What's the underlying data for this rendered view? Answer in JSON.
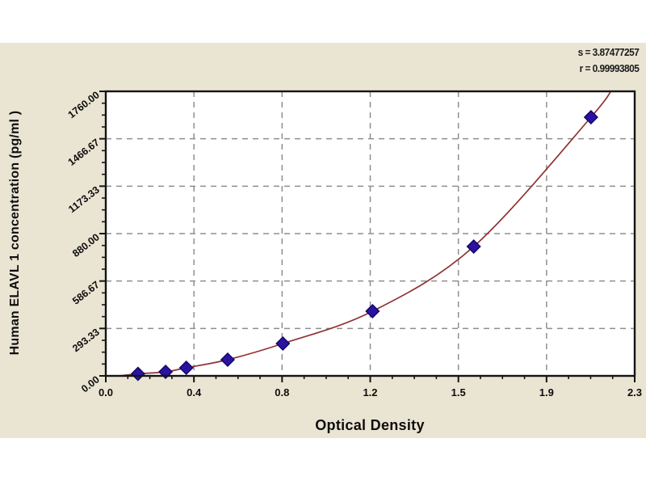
{
  "figure": {
    "stats": {
      "s_label": "s = 3.87477257",
      "r_label": "r = 0.99993805"
    }
  },
  "chart_data": {
    "type": "scatter",
    "title": "",
    "xlabel": "Optical Density",
    "ylabel": "Human ELAVL 1 concentration (pg/ml )",
    "xlim": [
      0,
      2.3
    ],
    "ylim": [
      0,
      1760
    ],
    "x_tick_labels": [
      "0.0",
      "0.4",
      "0.8",
      "1.2",
      "1.5",
      "1.9",
      "2.3"
    ],
    "y_tick_labels": [
      "0.00",
      "293.33",
      "586.67",
      "880.00",
      "1173.33",
      "1466.67",
      "1760.00"
    ],
    "minor_ticks_per_major": 4,
    "grid": "dashed",
    "legend": null,
    "points": {
      "optical_density": [
        0.14,
        0.26,
        0.35,
        0.53,
        0.77,
        1.16,
        1.6,
        2.11
      ],
      "concentration_pg_ml": [
        12.5,
        25,
        50,
        100,
        200,
        400,
        800,
        1600
      ]
    },
    "curve_extension": {
      "start": [
        0.06,
        0
      ],
      "end": [
        2.21,
        1800
      ]
    },
    "colors": {
      "panel_bg": "#eae5d3",
      "plot_bg": "#ffffff",
      "axis": "#141414",
      "grid": "#8f8f8f",
      "curve": "#8f3333",
      "marker_fill": "#2b12a3",
      "marker_stroke": "#120765",
      "text": "#0d0d0d"
    }
  }
}
